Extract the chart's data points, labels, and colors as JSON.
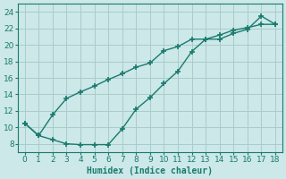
{
  "line1_x": [
    0,
    1,
    2,
    3,
    4,
    5,
    6,
    7,
    8,
    9,
    10,
    11,
    12,
    13,
    14,
    15,
    16,
    17,
    18
  ],
  "line1_y": [
    10.5,
    9.0,
    8.5,
    8.0,
    7.9,
    7.9,
    7.9,
    9.8,
    12.2,
    13.6,
    15.3,
    16.8,
    19.2,
    20.7,
    20.7,
    21.4,
    21.9,
    23.5,
    22.5
  ],
  "line2_x": [
    0,
    1,
    2,
    3,
    4,
    5,
    6,
    7,
    8,
    9,
    10,
    11,
    12,
    13,
    14,
    15,
    16,
    17,
    18
  ],
  "line2_y": [
    10.5,
    9.0,
    11.5,
    13.5,
    14.3,
    15.0,
    15.8,
    16.5,
    17.3,
    17.8,
    19.3,
    19.8,
    20.7,
    20.7,
    21.2,
    21.8,
    22.1,
    22.5,
    22.5
  ],
  "line_color": "#1a7a6e",
  "bg_color": "#cce8e8",
  "grid_color": "#aacccc",
  "xlabel": "Humidex (Indice chaleur)",
  "xlim": [
    -0.5,
    18.5
  ],
  "ylim": [
    7.0,
    25.0
  ],
  "yticks": [
    8,
    10,
    12,
    14,
    16,
    18,
    20,
    22,
    24
  ],
  "xticks": [
    0,
    1,
    2,
    3,
    4,
    5,
    6,
    7,
    8,
    9,
    10,
    11,
    12,
    13,
    14,
    15,
    16,
    17,
    18
  ],
  "marker": "+",
  "markersize": 4,
  "markeredgewidth": 1.2,
  "linewidth": 1.0,
  "xlabel_fontsize": 7,
  "tick_fontsize": 6.5
}
